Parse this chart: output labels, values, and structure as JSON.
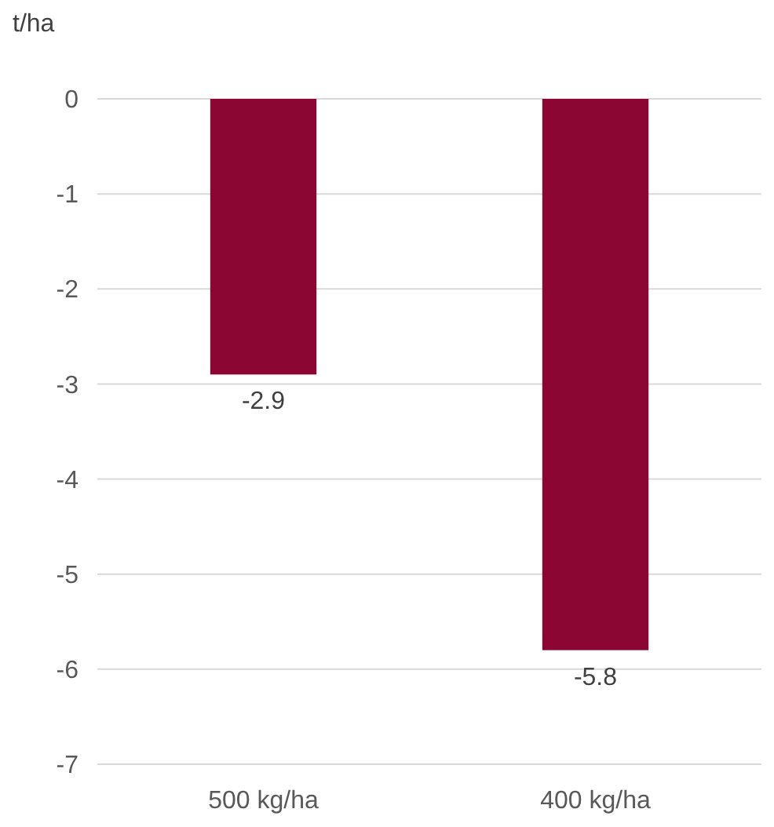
{
  "chart_data": {
    "type": "bar",
    "ylabel": "t/ha",
    "categories": [
      "500 kg/ha",
      "400 kg/ha"
    ],
    "values": [
      -2.9,
      -5.8
    ],
    "color": "#8c0634",
    "ylim": [
      -7,
      0
    ],
    "yticks": [
      0,
      -1,
      -2,
      -3,
      -4,
      -5,
      -6,
      -7
    ],
    "grid": "y",
    "data_labels": true
  }
}
